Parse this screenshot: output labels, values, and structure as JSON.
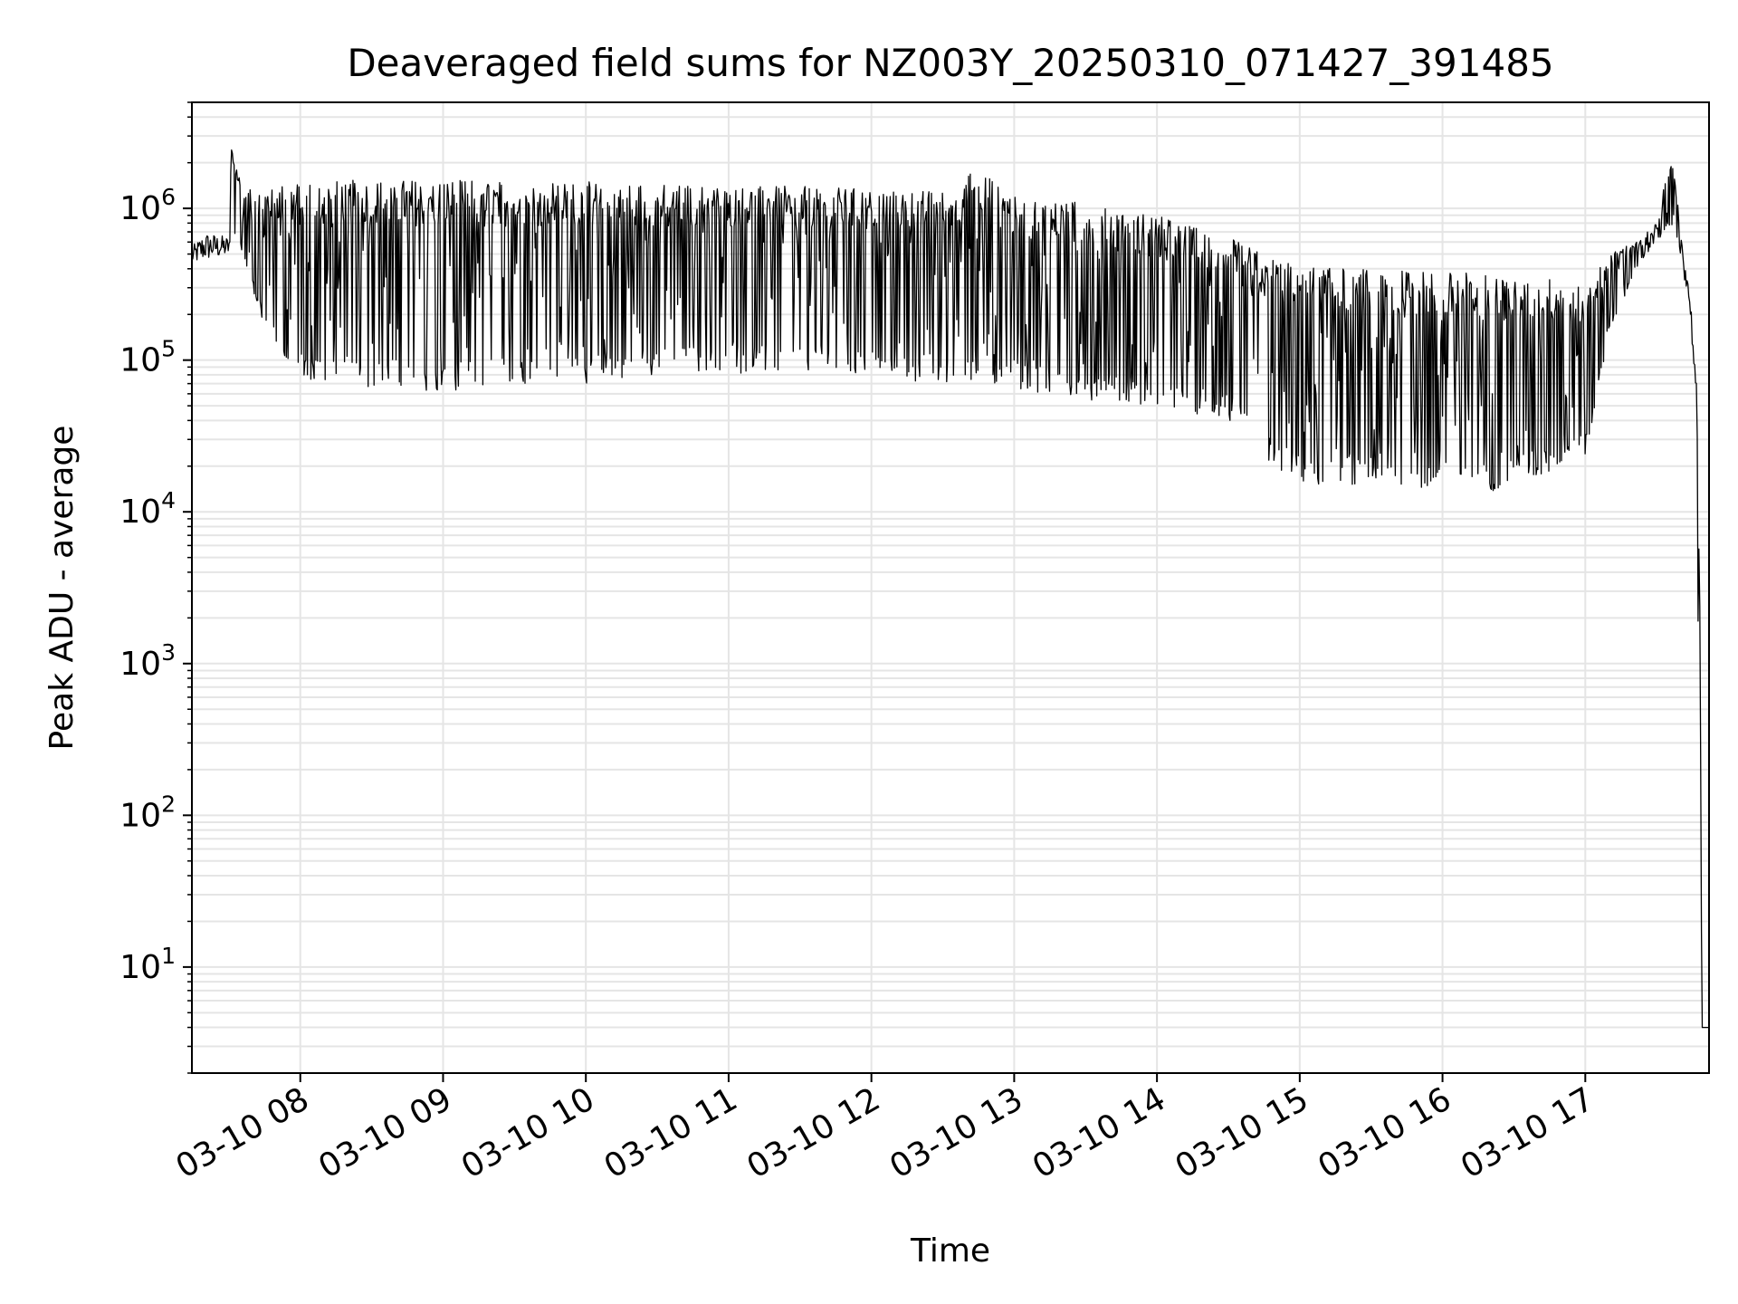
{
  "chart_data": {
    "type": "line",
    "title": "Deaveraged field sums for NZ003Y_20250310_071427_391485",
    "xlabel": "Time",
    "ylabel": "Peak ADU - average",
    "xscale": "time",
    "yscale": "log",
    "xlim": [
      "2025-03-10 07:14:27",
      "2025-03-10 17:52:00"
    ],
    "ylim": [
      2,
      5000000
    ],
    "grid": true,
    "legend": "none",
    "colors": {
      "line": "#000000",
      "grid": "#e5e5e5",
      "axes": "#000000"
    },
    "x_ticks": [
      {
        "time": "2025-03-10 08:00",
        "label": "03-10 08"
      },
      {
        "time": "2025-03-10 09:00",
        "label": "03-10 09"
      },
      {
        "time": "2025-03-10 10:00",
        "label": "03-10 10"
      },
      {
        "time": "2025-03-10 11:00",
        "label": "03-10 11"
      },
      {
        "time": "2025-03-10 12:00",
        "label": "03-10 12"
      },
      {
        "time": "2025-03-10 13:00",
        "label": "03-10 13"
      },
      {
        "time": "2025-03-10 14:00",
        "label": "03-10 14"
      },
      {
        "time": "2025-03-10 15:00",
        "label": "03-10 15"
      },
      {
        "time": "2025-03-10 16:00",
        "label": "03-10 16"
      },
      {
        "time": "2025-03-10 17:00",
        "label": "03-10 17"
      }
    ],
    "y_ticks": [
      {
        "value": 10,
        "base": "10",
        "exp": "1"
      },
      {
        "value": 100,
        "base": "10",
        "exp": "2"
      },
      {
        "value": 1000,
        "base": "10",
        "exp": "3"
      },
      {
        "value": 10000,
        "base": "10",
        "exp": "4"
      },
      {
        "value": 100000,
        "base": "10",
        "exp": "5"
      },
      {
        "value": 1000000,
        "base": "10",
        "exp": "6"
      }
    ],
    "series": [
      {
        "envelope": {
          "columns": [
            "time",
            "upper",
            "lower"
          ],
          "rows": [
            [
              "07:14",
              550000,
              420000
            ],
            [
              "07:20",
              700000,
              450000
            ],
            [
              "07:30",
              650000,
              480000
            ],
            [
              "07:31",
              2700000,
              700000
            ],
            [
              "07:36",
              1300000,
              500000
            ],
            [
              "07:45",
              1400000,
              150000
            ],
            [
              "08:00",
              1500000,
              70000
            ],
            [
              "08:30",
              1550000,
              65000
            ],
            [
              "09:00",
              1550000,
              60000
            ],
            [
              "09:30",
              1500000,
              70000
            ],
            [
              "10:00",
              1500000,
              70000
            ],
            [
              "10:30",
              1450000,
              80000
            ],
            [
              "11:00",
              1400000,
              80000
            ],
            [
              "11:30",
              1400000,
              85000
            ],
            [
              "12:00",
              1350000,
              75000
            ],
            [
              "12:30",
              1300000,
              70000
            ],
            [
              "12:45",
              1950000,
              75000
            ],
            [
              "13:00",
              1200000,
              65000
            ],
            [
              "13:30",
              1100000,
              55000
            ],
            [
              "14:00",
              900000,
              50000
            ],
            [
              "14:30",
              650000,
              40000
            ],
            [
              "14:45",
              500000,
              22000
            ],
            [
              "15:00",
              420000,
              15000
            ],
            [
              "15:30",
              400000,
              15000
            ],
            [
              "16:00",
              380000,
              14000
            ],
            [
              "16:15",
              380000,
              13000
            ],
            [
              "16:30",
              350000,
              15000
            ],
            [
              "16:50",
              350000,
              18000
            ],
            [
              "17:00",
              300000,
              22000
            ],
            [
              "17:10",
              500000,
              150000
            ],
            [
              "17:20",
              600000,
              350000
            ],
            [
              "17:30",
              800000,
              600000
            ],
            [
              "17:36",
              2300000,
              800000
            ],
            [
              "17:40",
              800000,
              500000
            ],
            [
              "17:44",
              300000,
              200000
            ],
            [
              "17:46",
              100000,
              70000
            ],
            [
              "17:47",
              60000,
              40000
            ],
            [
              "17:48",
              10000,
              4
            ],
            [
              "17:49",
              4,
              4
            ],
            [
              "17:52",
              4,
              4
            ]
          ]
        }
      }
    ]
  }
}
